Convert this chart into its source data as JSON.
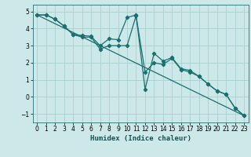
{
  "xlabel": "Humidex (Indice chaleur)",
  "bg_color": "#cde8e8",
  "grid_color": "#aacfcf",
  "line_color": "#1a7070",
  "xlim": [
    -0.5,
    23.5
  ],
  "ylim": [
    -1.5,
    5.4
  ],
  "yticks": [
    -1,
    0,
    1,
    2,
    3,
    4,
    5
  ],
  "xticks": [
    0,
    1,
    2,
    3,
    4,
    5,
    6,
    7,
    8,
    9,
    10,
    11,
    12,
    13,
    14,
    15,
    16,
    17,
    18,
    19,
    20,
    21,
    22,
    23
  ],
  "line1_x": [
    0,
    1,
    2,
    3,
    4,
    5,
    6,
    7,
    8,
    9,
    10,
    11,
    12,
    13,
    14,
    15,
    16,
    17,
    18,
    19,
    20,
    21,
    22,
    23
  ],
  "line1_y": [
    4.8,
    4.8,
    4.55,
    4.15,
    3.65,
    3.6,
    3.55,
    3.0,
    3.4,
    3.35,
    4.65,
    4.8,
    0.45,
    2.55,
    2.1,
    2.3,
    1.65,
    1.55,
    1.2,
    0.75,
    0.35,
    0.15,
    -0.65,
    -1.1
  ],
  "line2_x": [
    0,
    1,
    2,
    3,
    4,
    5,
    6,
    7,
    8,
    9,
    10,
    11,
    12,
    13,
    14,
    15,
    16,
    17,
    18,
    19,
    20,
    21,
    22,
    23
  ],
  "line2_y": [
    4.8,
    4.8,
    4.55,
    4.15,
    3.65,
    3.5,
    3.5,
    2.8,
    3.0,
    3.0,
    3.0,
    4.75,
    1.45,
    2.0,
    1.9,
    2.25,
    1.6,
    1.45,
    1.2,
    0.75,
    0.35,
    0.15,
    -0.65,
    -1.1
  ],
  "line3_x": [
    0,
    23
  ],
  "line3_y": [
    4.8,
    -1.1
  ]
}
